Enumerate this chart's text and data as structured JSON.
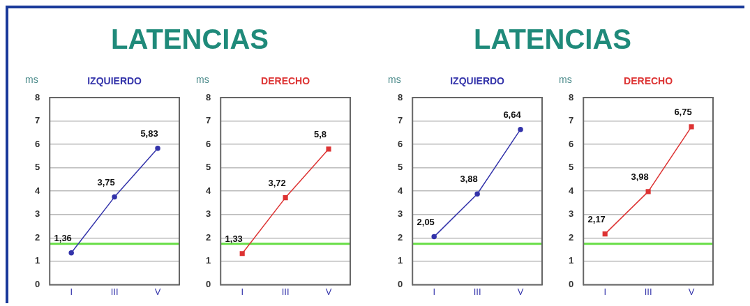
{
  "chart_data": [
    {
      "type": "line",
      "title": "LATENCIAS",
      "subtitle": "IZQUIERDO",
      "ylabel": "ms",
      "categories": [
        "I",
        "III",
        "V"
      ],
      "marker": "circle",
      "grid": "y",
      "ylim": [
        0,
        8
      ],
      "yticks": [
        0,
        1,
        2,
        3,
        4,
        5,
        6,
        7,
        8
      ],
      "series": [
        {
          "color": "#3333aa",
          "values": [
            1.36,
            3.75,
            5.83
          ],
          "value_labels": [
            "1,36",
            "3,75",
            "5,83"
          ]
        }
      ],
      "ref_lines": [
        {
          "axis": "y",
          "value": 1.75,
          "color": "#66dd44"
        }
      ]
    },
    {
      "type": "line",
      "subtitle": "DERECHO",
      "ylabel": "ms",
      "categories": [
        "I",
        "III",
        "V"
      ],
      "marker": "square",
      "grid": "y",
      "ylim": [
        0,
        8
      ],
      "yticks": [
        0,
        1,
        2,
        3,
        4,
        5,
        6,
        7,
        8
      ],
      "series": [
        {
          "color": "#dd3333",
          "values": [
            1.33,
            3.72,
            5.8
          ],
          "value_labels": [
            "1,33",
            "3,72",
            "5,8"
          ]
        }
      ],
      "ref_lines": [
        {
          "axis": "y",
          "value": 1.75,
          "color": "#66dd44"
        }
      ]
    },
    {
      "type": "line",
      "title": "LATENCIAS",
      "subtitle": "IZQUIERDO",
      "ylabel": "ms",
      "categories": [
        "I",
        "III",
        "V"
      ],
      "marker": "circle",
      "grid": "y",
      "ylim": [
        0,
        8
      ],
      "yticks": [
        0,
        1,
        2,
        3,
        4,
        5,
        6,
        7,
        8
      ],
      "series": [
        {
          "color": "#3333aa",
          "values": [
            2.05,
            3.88,
            6.64
          ],
          "value_labels": [
            "2,05",
            "3,88",
            "6,64"
          ]
        }
      ],
      "ref_lines": [
        {
          "axis": "y",
          "value": 1.75,
          "color": "#66dd44"
        }
      ]
    },
    {
      "type": "line",
      "subtitle": "DERECHO",
      "ylabel": "ms",
      "categories": [
        "I",
        "III",
        "V"
      ],
      "marker": "square",
      "grid": "y",
      "ylim": [
        0,
        8
      ],
      "yticks": [
        0,
        1,
        2,
        3,
        4,
        5,
        6,
        7,
        8
      ],
      "series": [
        {
          "color": "#dd3333",
          "values": [
            2.17,
            3.98,
            6.75
          ],
          "value_labels": [
            "2,17",
            "3,98",
            "6,75"
          ]
        }
      ],
      "ref_lines": [
        {
          "axis": "y",
          "value": 1.75,
          "color": "#66dd44"
        }
      ]
    }
  ]
}
